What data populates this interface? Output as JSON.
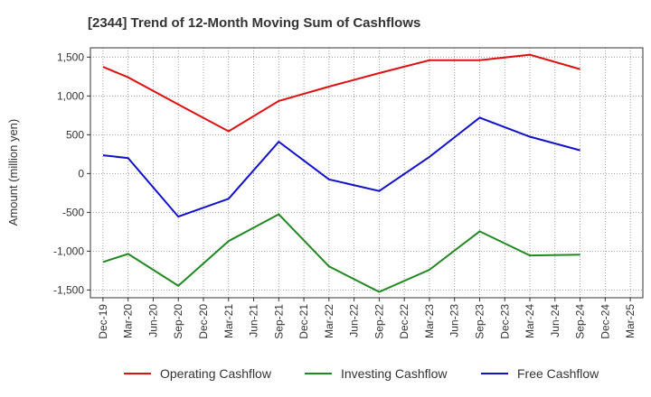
{
  "chart_data": {
    "type": "line",
    "title": "[2344]  Trend of 12-Month Moving Sum of Cashflows",
    "ylabel": "Amount (million yen)",
    "xlabel": "",
    "categories": [
      "Dec-19",
      "Mar-20",
      "Jun-20",
      "Sep-20",
      "Dec-20",
      "Mar-21",
      "Jun-21",
      "Sep-21",
      "Dec-21",
      "Mar-22",
      "Jun-22",
      "Sep-22",
      "Dec-22",
      "Mar-23",
      "Jun-23",
      "Sep-23",
      "Dec-23",
      "Mar-24",
      "Jun-24",
      "Sep-24",
      "Dec-24",
      "Mar-25"
    ],
    "ylim": [
      -1600,
      1620
    ],
    "yticks": [
      -1500,
      -1000,
      -500,
      0,
      500,
      1000,
      1500
    ],
    "ytick_labels": [
      "-1,500",
      "-1,000",
      "-500",
      "0",
      "500",
      "1,000",
      "1,500"
    ],
    "grid": true,
    "legend_position": "bottom",
    "series": [
      {
        "name": "Operating Cashflow",
        "color": "#dd1111",
        "points": [
          {
            "x": "Dec-19",
            "y": 1375
          },
          {
            "x": "Mar-20",
            "y": 1240
          },
          {
            "x": "Sep-20",
            "y": 890
          },
          {
            "x": "Mar-21",
            "y": 545
          },
          {
            "x": "Sep-21",
            "y": 935
          },
          {
            "x": "Mar-22",
            "y": 1120
          },
          {
            "x": "Sep-22",
            "y": 1295
          },
          {
            "x": "Mar-23",
            "y": 1460
          },
          {
            "x": "Sep-23",
            "y": 1460
          },
          {
            "x": "Mar-24",
            "y": 1530
          },
          {
            "x": "Sep-24",
            "y": 1345
          }
        ]
      },
      {
        "name": "Investing Cashflow",
        "color": "#228822",
        "points": [
          {
            "x": "Dec-19",
            "y": -1140
          },
          {
            "x": "Mar-20",
            "y": -1035
          },
          {
            "x": "Sep-20",
            "y": -1445
          },
          {
            "x": "Mar-21",
            "y": -870
          },
          {
            "x": "Sep-21",
            "y": -525
          },
          {
            "x": "Mar-22",
            "y": -1195
          },
          {
            "x": "Sep-22",
            "y": -1525
          },
          {
            "x": "Mar-23",
            "y": -1240
          },
          {
            "x": "Sep-23",
            "y": -745
          },
          {
            "x": "Mar-24",
            "y": -1055
          },
          {
            "x": "Sep-24",
            "y": -1045
          }
        ]
      },
      {
        "name": "Free Cashflow",
        "color": "#1111cc",
        "points": [
          {
            "x": "Dec-19",
            "y": 235
          },
          {
            "x": "Mar-20",
            "y": 200
          },
          {
            "x": "Sep-20",
            "y": -555
          },
          {
            "x": "Mar-21",
            "y": -325
          },
          {
            "x": "Sep-21",
            "y": 410
          },
          {
            "x": "Mar-22",
            "y": -75
          },
          {
            "x": "Sep-22",
            "y": -225
          },
          {
            "x": "Mar-23",
            "y": 215
          },
          {
            "x": "Sep-23",
            "y": 720
          },
          {
            "x": "Mar-24",
            "y": 475
          },
          {
            "x": "Sep-24",
            "y": 300
          }
        ]
      }
    ]
  }
}
